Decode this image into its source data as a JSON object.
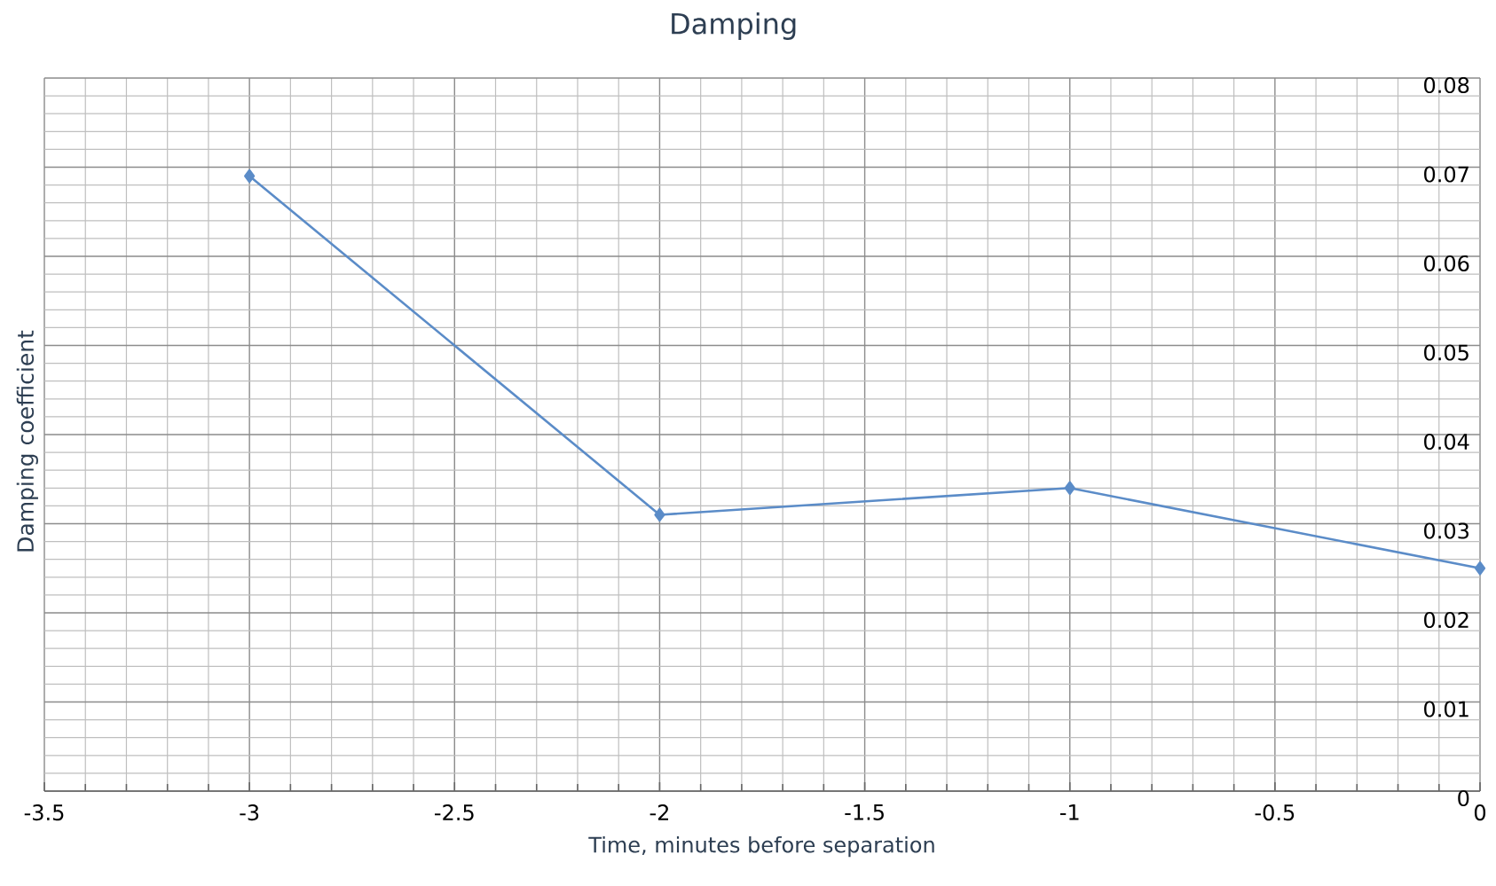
{
  "chart_data": {
    "type": "line",
    "title": "Damping",
    "xlabel": "Time, minutes before separation",
    "ylabel": "Damping coefficient",
    "x": [
      -3,
      -2,
      -1,
      0
    ],
    "series": [
      {
        "color": "#5b8cc8",
        "values": [
          0.069,
          0.031,
          0.034,
          0.025
        ]
      }
    ],
    "xlim": [
      -3.5,
      0
    ],
    "xticks": [
      -3.5,
      -3,
      -2.5,
      -2,
      -1.5,
      -1,
      -0.5,
      0
    ],
    "ylim": [
      0,
      0.08
    ],
    "yticks": [
      0,
      0.01,
      0.02,
      0.03,
      0.04,
      0.05,
      0.06,
      0.07,
      0.08
    ],
    "grid": true,
    "marker": "diamond",
    "line_style": "solid"
  }
}
